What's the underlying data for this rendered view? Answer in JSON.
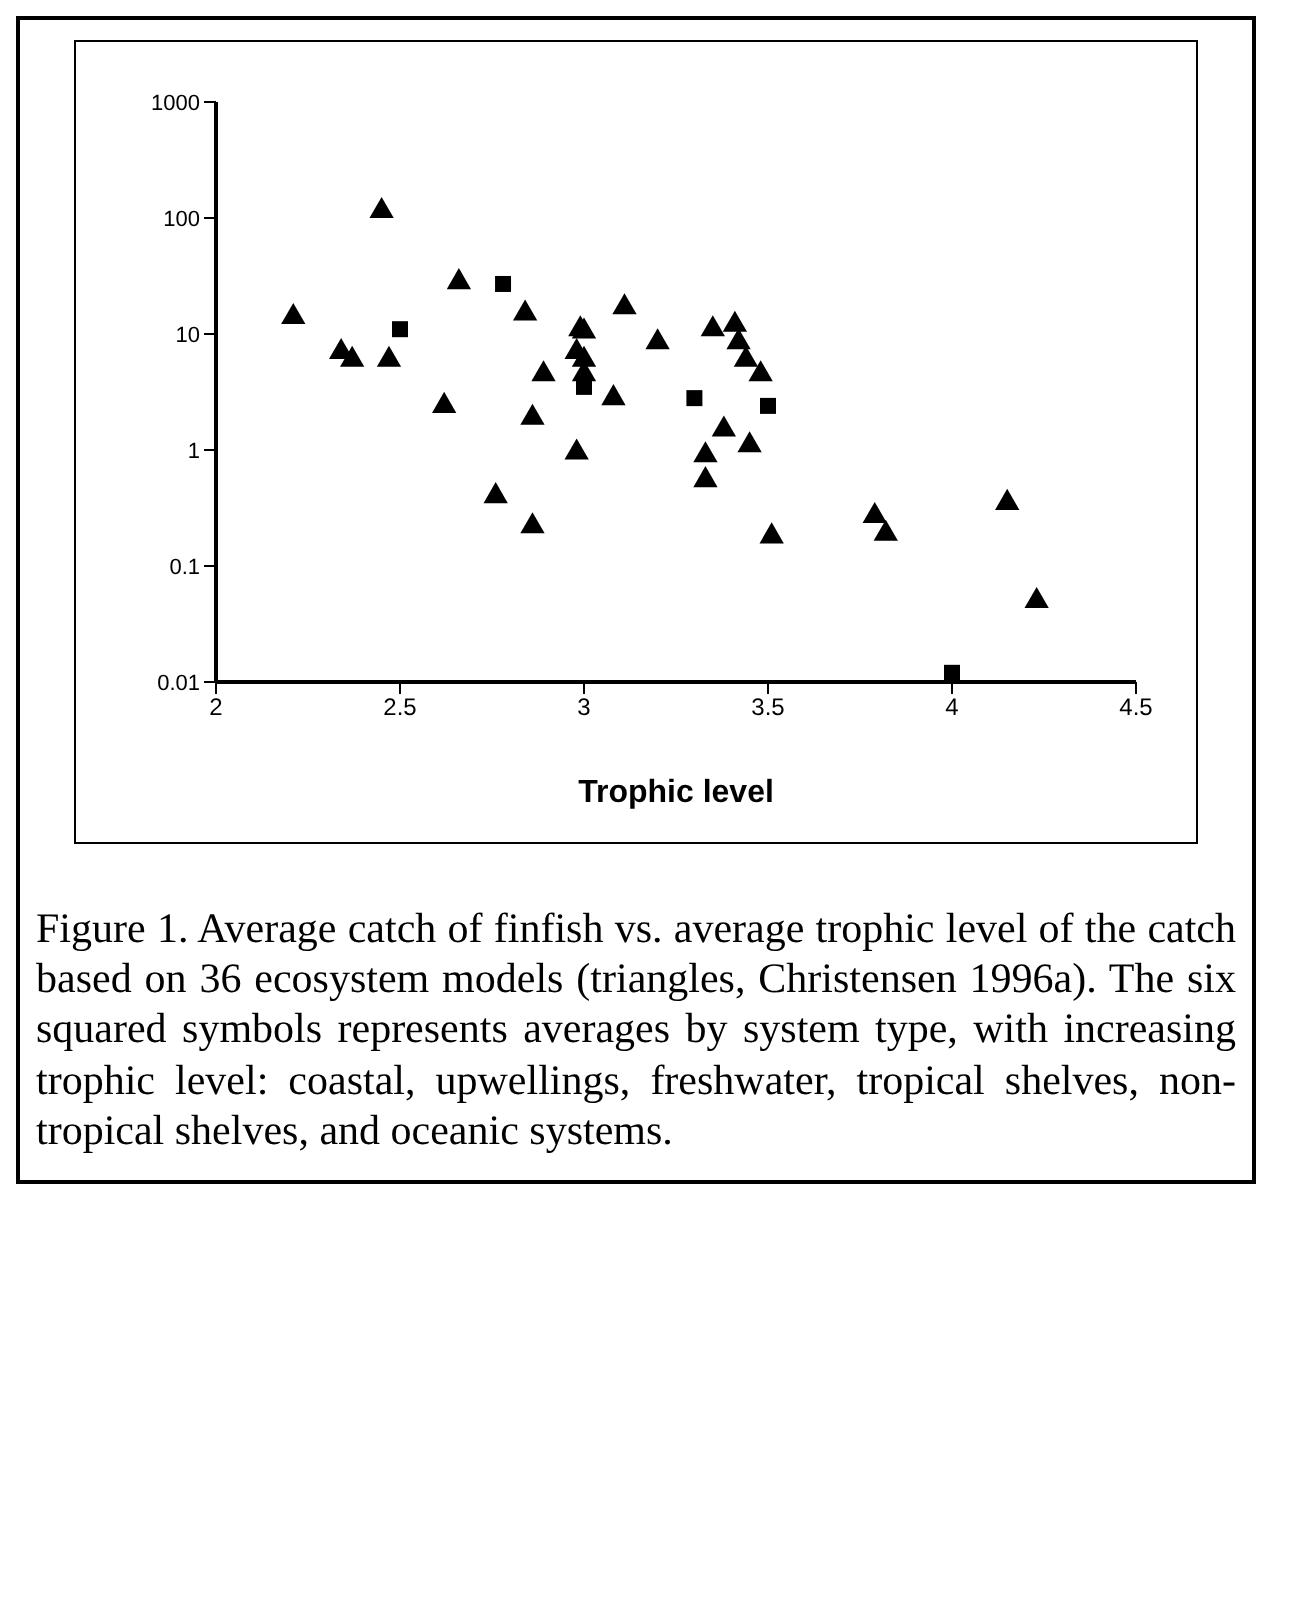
{
  "chart_data": {
    "type": "scatter",
    "xlabel": "Trophic level",
    "log": "y",
    "grid": false,
    "legend": false,
    "xlim": [
      2,
      4.5
    ],
    "xticks": [
      2,
      2.5,
      3,
      3.5,
      4,
      4.5
    ],
    "ylim": [
      0.01,
      1000
    ],
    "yticks": [
      0.01,
      0.1,
      1,
      10,
      100,
      1000
    ],
    "series": [
      {
        "color": "#000000",
        "marker": "triangle",
        "x": [
          2.21,
          2.34,
          2.37,
          2.45,
          2.47,
          2.62,
          2.66,
          2.76,
          2.84,
          2.86,
          2.86,
          2.89,
          2.98,
          2.98,
          2.99,
          3.0,
          3.0,
          3.0,
          3.08,
          3.11,
          3.2,
          3.33,
          3.33,
          3.35,
          3.38,
          3.41,
          3.42,
          3.44,
          3.45,
          3.48,
          3.51,
          3.79,
          3.82,
          4.15,
          4.23
        ],
        "values": [
          14,
          7,
          6,
          115,
          6,
          2.4,
          28,
          0.4,
          15,
          1.9,
          0.22,
          4.5,
          7,
          0.95,
          11,
          10.5,
          6,
          4.5,
          2.8,
          17,
          8.5,
          0.9,
          0.55,
          11,
          1.5,
          12,
          8.5,
          6,
          1.1,
          4.5,
          0.18,
          0.27,
          0.19,
          0.35,
          0.05
        ]
      },
      {
        "color": "#000000",
        "marker": "square",
        "x": [
          2.5,
          2.78,
          3.0,
          3.3,
          3.5,
          4.0
        ],
        "values": [
          11,
          27,
          3.5,
          2.8,
          2.4,
          0.012
        ]
      }
    ],
    "annotations": [
      "Figure 1. Average catch of finfish vs. average trophic level of the catch based on 36 ecosystem models (triangles, Christensen 1996a).  The six squared symbols represents averages by system type, with increasing trophic level: coastal, upwellings, freshwater, tropical shelves, non-tropical shelves, and oceanic systems."
    ]
  }
}
